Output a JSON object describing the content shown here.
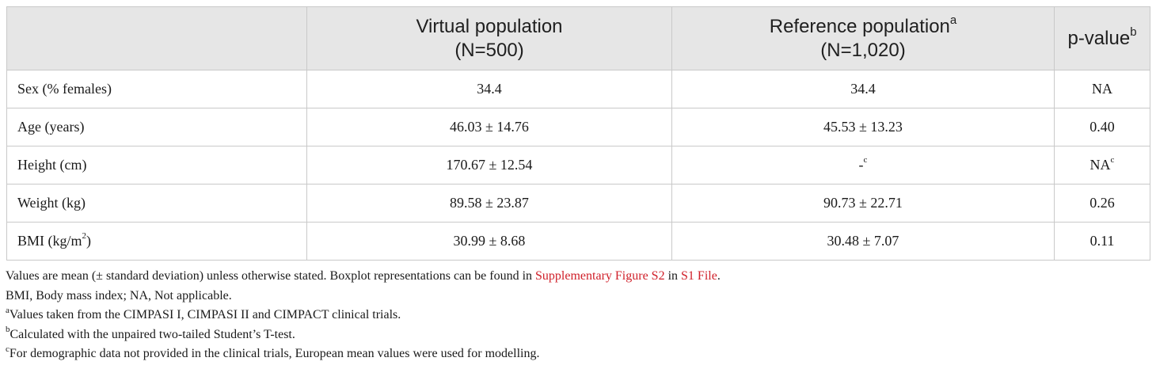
{
  "table": {
    "headers": [
      {
        "line1": "",
        "line2": "",
        "sup": ""
      },
      {
        "line1": "Virtual population",
        "line2": "(N=500)",
        "sup": ""
      },
      {
        "line1": "Reference population",
        "line2": "(N=1,020)",
        "sup": "a"
      },
      {
        "line1": "p-value",
        "line2": "",
        "sup": "b"
      }
    ],
    "rows": [
      {
        "label": "Sex (% females)",
        "label_sup": "",
        "virtual": "34.4",
        "reference": "34.4",
        "reference_sup": "",
        "pvalue": "NA",
        "pvalue_sup": ""
      },
      {
        "label": "Age (years)",
        "label_sup": "",
        "virtual": "46.03 ± 14.76",
        "reference": "45.53 ± 13.23",
        "reference_sup": "",
        "pvalue": "0.40",
        "pvalue_sup": ""
      },
      {
        "label": "Height (cm)",
        "label_sup": "",
        "virtual": "170.67 ± 12.54",
        "reference": "-",
        "reference_sup": "c",
        "pvalue": "NA",
        "pvalue_sup": "c"
      },
      {
        "label": "Weight (kg)",
        "label_sup": "",
        "virtual": "89.58 ± 23.87",
        "reference": "90.73 ± 22.71",
        "reference_sup": "",
        "pvalue": "0.26",
        "pvalue_sup": ""
      },
      {
        "label": "BMI (kg/m",
        "label_sup": "2",
        "label_after": ")",
        "virtual": "30.99 ± 8.68",
        "reference": "30.48 ± 7.07",
        "reference_sup": "",
        "pvalue": "0.11",
        "pvalue_sup": ""
      }
    ]
  },
  "footnotes": {
    "line1": {
      "text_before": "Values are mean (± standard deviation) unless otherwise stated. Boxplot representations can be found in ",
      "link1": "Supplementary Figure S2",
      "text_middle": " in ",
      "link2": "S1 File",
      "text_after": "."
    },
    "line2": "BMI, Body mass index; NA, Not applicable.",
    "note_a": {
      "sup": "a",
      "text": "Values taken from the CIMPASI I, CIMPASI II and CIMPACT clinical trials."
    },
    "note_b": {
      "sup": "b",
      "text": "Calculated with the unpaired two-tailed Student’s T-test."
    },
    "note_c": {
      "sup": "c",
      "text": "For demographic data not provided in the clinical trials, European mean values were used for modelling."
    }
  },
  "colors": {
    "header_bg": "#e6e6e6",
    "border": "#c9c9c9",
    "link": "#d0202a",
    "text": "#1a1a1a"
  }
}
